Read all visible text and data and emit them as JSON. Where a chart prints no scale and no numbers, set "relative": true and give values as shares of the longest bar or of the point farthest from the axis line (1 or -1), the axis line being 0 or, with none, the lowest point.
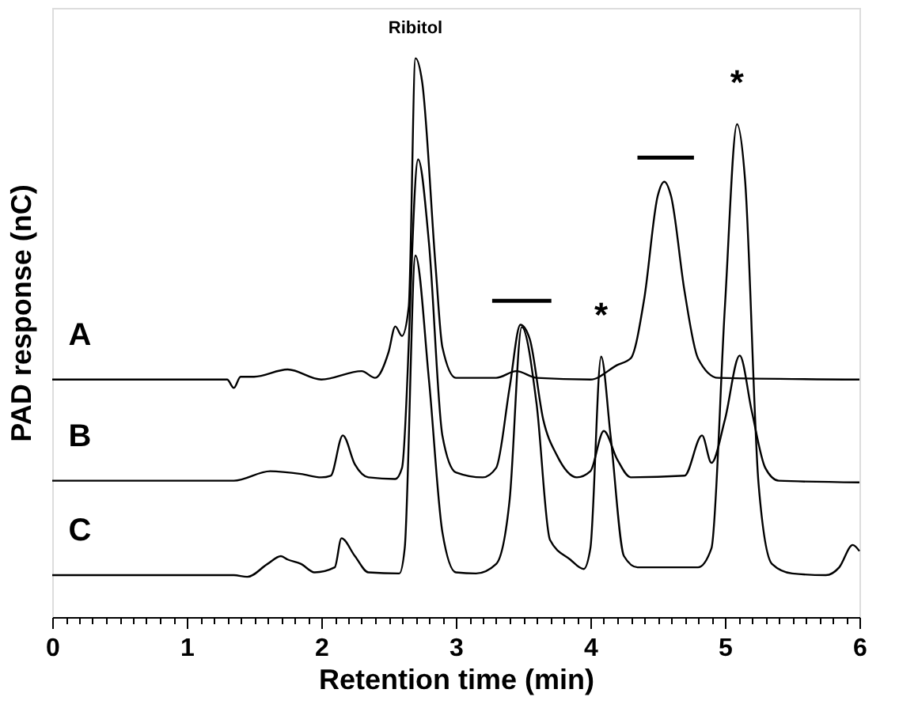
{
  "chart_data": {
    "type": "line",
    "relative": true,
    "xlabel": "Retention time (min)",
    "ylabel": "PAD response (nC)",
    "xlim": [
      0,
      6
    ],
    "xticks": [
      0,
      {
        "value": 0.1,
        "label": null
      },
      {
        "value": 0.2,
        "label": null
      },
      {
        "value": 0.3,
        "label": null
      },
      {
        "value": 0.4,
        "label": null
      },
      {
        "value": 0.5,
        "label": null
      },
      {
        "value": 0.6,
        "label": null
      },
      {
        "value": 0.7,
        "label": null
      },
      {
        "value": 0.8,
        "label": null
      },
      {
        "value": 0.9,
        "label": null
      },
      1,
      {
        "value": 1.1,
        "label": null
      },
      {
        "value": 1.2,
        "label": null
      },
      {
        "value": 1.3,
        "label": null
      },
      {
        "value": 1.4,
        "label": null
      },
      {
        "value": 1.5,
        "label": null
      },
      {
        "value": 1.6,
        "label": null
      },
      {
        "value": 1.7,
        "label": null
      },
      {
        "value": 1.8,
        "label": null
      },
      {
        "value": 1.9,
        "label": null
      },
      2,
      {
        "value": 2.1,
        "label": null
      },
      {
        "value": 2.2,
        "label": null
      },
      {
        "value": 2.3,
        "label": null
      },
      {
        "value": 2.4,
        "label": null
      },
      {
        "value": 2.5,
        "label": null
      },
      {
        "value": 2.6,
        "label": null
      },
      {
        "value": 2.7,
        "label": null
      },
      {
        "value": 2.8,
        "label": null
      },
      {
        "value": 2.9,
        "label": null
      },
      3,
      {
        "value": 3.1,
        "label": null
      },
      {
        "value": 3.2,
        "label": null
      },
      {
        "value": 3.3,
        "label": null
      },
      {
        "value": 3.4,
        "label": null
      },
      {
        "value": 3.5,
        "label": null
      },
      {
        "value": 3.6,
        "label": null
      },
      {
        "value": 3.7,
        "label": null
      },
      {
        "value": 3.8,
        "label": null
      },
      {
        "value": 3.9,
        "label": null
      },
      4,
      {
        "value": 4.1,
        "label": null
      },
      {
        "value": 4.2,
        "label": null
      },
      {
        "value": 4.3,
        "label": null
      },
      {
        "value": 4.4,
        "label": null
      },
      {
        "value": 4.5,
        "label": null
      },
      {
        "value": 4.6,
        "label": null
      },
      {
        "value": 4.7,
        "label": null
      },
      {
        "value": 4.8,
        "label": null
      },
      {
        "value": 4.9,
        "label": null
      },
      5,
      {
        "value": 5.1,
        "label": null
      },
      {
        "value": 5.2,
        "label": null
      },
      {
        "value": 5.3,
        "label": null
      },
      {
        "value": 5.4,
        "label": null
      },
      {
        "value": 5.5,
        "label": null
      },
      {
        "value": 5.6,
        "label": null
      },
      {
        "value": 5.7,
        "label": null
      },
      {
        "value": 5.8,
        "label": null
      },
      {
        "value": 5.9,
        "label": null
      },
      6
    ],
    "grid": false,
    "legend": false,
    "marker": "none",
    "line_style": "solid",
    "series": [
      {
        "name": "A",
        "color": "#000000",
        "x": [
          0,
          1.3,
          1.35,
          1.4,
          1.5,
          1.75,
          2.0,
          2.3,
          2.4,
          2.5,
          2.55,
          2.6,
          2.65,
          2.7,
          2.75,
          2.85,
          2.9,
          3.0,
          3.3,
          3.45,
          3.6,
          4.0,
          4.2,
          4.3,
          4.4,
          4.5,
          4.55,
          4.6,
          4.7,
          4.8,
          4.95,
          6.0
        ],
        "values": [
          0.425,
          0.425,
          0.41,
          0.43,
          0.43,
          0.443,
          0.425,
          0.44,
          0.428,
          0.474,
          0.52,
          0.503,
          0.555,
          1.0,
          0.957,
          0.626,
          0.483,
          0.428,
          0.428,
          0.44,
          0.428,
          0.425,
          0.451,
          0.463,
          0.569,
          0.753,
          0.779,
          0.753,
          0.583,
          0.463,
          0.428,
          0.425
        ]
      },
      {
        "name": "B",
        "color": "#000000",
        "x": [
          0,
          1.35,
          1.62,
          1.85,
          2.0,
          2.07,
          2.16,
          2.25,
          2.35,
          2.55,
          2.6,
          2.72,
          2.8,
          2.9,
          3.0,
          3.2,
          3.3,
          3.4,
          3.48,
          3.55,
          3.65,
          3.75,
          3.9,
          4.0,
          4.1,
          4.2,
          4.3,
          4.7,
          4.83,
          4.9,
          5.0,
          5.11,
          5.2,
          5.3,
          5.4,
          6.0
        ],
        "values": [
          0.244,
          0.244,
          0.261,
          0.256,
          0.25,
          0.253,
          0.325,
          0.273,
          0.25,
          0.247,
          0.267,
          0.819,
          0.67,
          0.325,
          0.259,
          0.25,
          0.267,
          0.411,
          0.523,
          0.497,
          0.353,
          0.29,
          0.25,
          0.261,
          0.333,
          0.282,
          0.25,
          0.253,
          0.325,
          0.276,
          0.353,
          0.468,
          0.368,
          0.267,
          0.244,
          0.241
        ]
      },
      {
        "name": "C",
        "color": "#000000",
        "x": [
          0,
          1.35,
          1.45,
          1.6,
          1.7,
          1.75,
          1.85,
          1.95,
          2.1,
          2.15,
          2.25,
          2.35,
          2.58,
          2.62,
          2.7,
          2.8,
          2.9,
          3.0,
          3.15,
          3.3,
          3.4,
          3.49,
          3.6,
          3.7,
          3.85,
          3.95,
          4.0,
          4.08,
          4.15,
          4.25,
          4.35,
          4.8,
          4.9,
          5.0,
          5.09,
          5.15,
          5.25,
          5.35,
          5.5,
          5.75,
          5.85,
          5.95,
          6.0
        ],
        "values": [
          0.075,
          0.075,
          0.072,
          0.095,
          0.109,
          0.103,
          0.095,
          0.08,
          0.089,
          0.141,
          0.109,
          0.08,
          0.078,
          0.123,
          0.647,
          0.425,
          0.152,
          0.08,
          0.078,
          0.095,
          0.21,
          0.519,
          0.382,
          0.138,
          0.103,
          0.086,
          0.123,
          0.466,
          0.325,
          0.109,
          0.089,
          0.089,
          0.123,
          0.555,
          0.882,
          0.782,
          0.239,
          0.095,
          0.078,
          0.075,
          0.089,
          0.129,
          0.118
        ]
      },
      {
        "color": "#000000",
        "x": [
          3.27,
          3.71
        ],
        "values": [
          0.566,
          0.566
        ]
      },
      {
        "color": "#000000",
        "x": [
          4.35,
          4.77
        ],
        "values": [
          0.822,
          0.822
        ]
      }
    ],
    "annotations": [
      {
        "text": "Ribitol",
        "x": 2.7,
        "y": 1.0
      },
      {
        "text": "*",
        "x": 4.08,
        "y": 0.466
      },
      {
        "text": "*",
        "x": 5.09,
        "y": 0.882
      }
    ]
  }
}
